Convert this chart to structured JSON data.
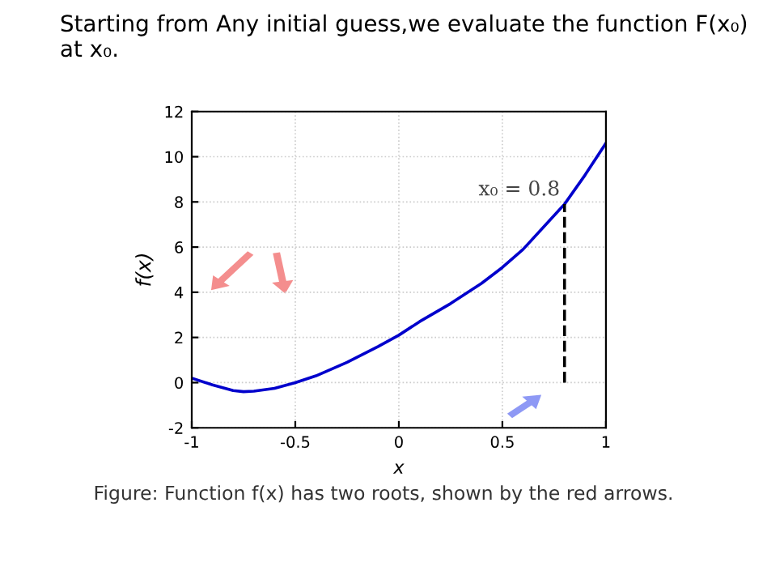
{
  "chart_data": {
    "type": "line",
    "title": "Starting from Any initial guess,we evaluate the function F(x₀) at x₀.",
    "xlabel": "x",
    "ylabel": "f(x)",
    "x": [
      -1,
      -0.9,
      -0.8,
      -0.75,
      -0.7,
      -0.6,
      -0.5,
      -0.4,
      -0.25,
      -0.1,
      0,
      0.1,
      0.25,
      0.4,
      0.5,
      0.6,
      0.7,
      0.8,
      0.9,
      1
    ],
    "series": [
      {
        "color": "#0000cc",
        "values": [
          0.2,
          -0.1,
          -0.35,
          -0.4,
          -0.38,
          -0.25,
          0,
          0.3,
          0.9,
          1.6,
          2.1,
          2.7,
          3.5,
          4.4,
          5.1,
          5.9,
          6.9,
          7.9,
          9.2,
          10.6
        ]
      },
      {
        "color": "#000000",
        "type": "line",
        "line_style": "dashed",
        "x": [
          0.8,
          0.8
        ],
        "values": [
          0,
          7.9
        ]
      }
    ],
    "xlim": [
      -1,
      1
    ],
    "xticks": [
      -1,
      -0.5,
      0,
      0.5,
      1
    ],
    "ylim": [
      -2,
      12
    ],
    "yticks": [
      -2,
      0,
      2,
      4,
      6,
      8,
      10,
      12
    ],
    "grid": true,
    "marker": "none",
    "line_style": "solid",
    "annotations": [
      {
        "text": "x₀ = 0.8",
        "x": 0.8,
        "y": 7.9
      },
      "Figure: Function f(x) has two roots, shown by the red arrows."
    ]
  }
}
